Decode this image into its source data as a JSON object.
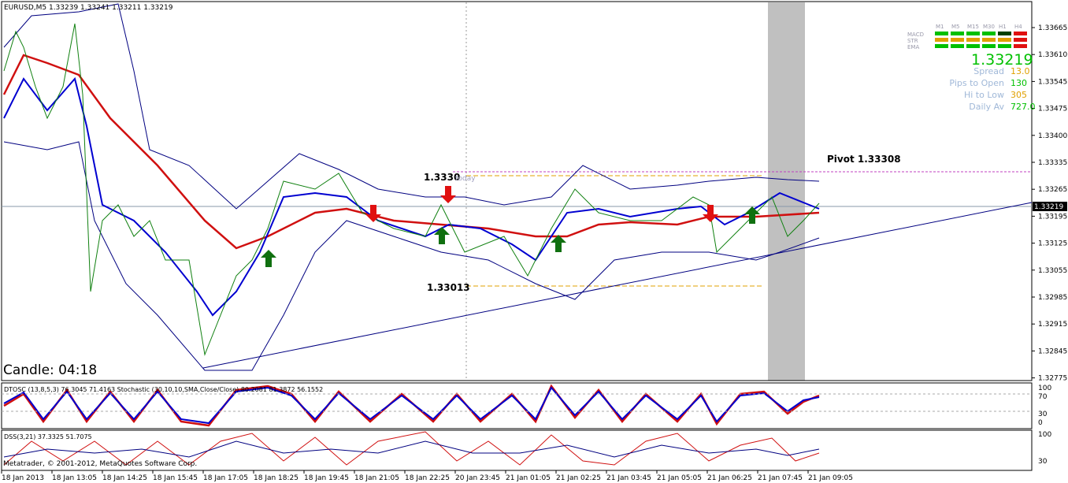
{
  "header": {
    "symbol": "EURUSD,M5  1.33239 1.33241 1.33211 1.33219"
  },
  "price_axis": [
    "1.33665",
    "1.33610",
    "1.33545",
    "1.33475",
    "1.33400",
    "1.33335",
    "1.33265",
    "1.33195",
    "1.33125",
    "1.33055",
    "1.32985",
    "1.32915",
    "1.32845",
    "1.32775"
  ],
  "current_price": "1.33219",
  "time_axis": [
    "18 Jan 2013",
    "18 Jan 13:05",
    "18 Jan 14:25",
    "18 Jan 15:45",
    "18 Jan 17:05",
    "18 Jan 18:25",
    "18 Jan 19:45",
    "18 Jan 21:05",
    "18 Jan 22:25",
    "20 Jan 23:45",
    "21 Jan 01:05",
    "21 Jan 02:25",
    "21 Jan 03:45",
    "21 Jan 05:05",
    "21 Jan 06:25",
    "21 Jan 07:45",
    "21 Jan 09:05"
  ],
  "annotations": {
    "candle": "Candle:  04:18",
    "high": "1.3330",
    "today": "today",
    "low": "1.33013",
    "pivot": "Pivot 1.33308"
  },
  "info_panel": {
    "timeframes": [
      "M1",
      "M5",
      "M15",
      "M30",
      "H1",
      "H4"
    ],
    "rows": [
      "MACD",
      "STR",
      "EMA"
    ],
    "price": "1.33219",
    "stats": [
      {
        "label": "Spread",
        "value": "13.0"
      },
      {
        "label": "Pips to Open",
        "value": "130"
      },
      {
        "label": "Hi to Low",
        "value": "305"
      },
      {
        "label": "Daily Av",
        "value": "727.0"
      }
    ]
  },
  "indicator1": {
    "title": "DTOSC (13,8,5,3) 76.3045 71.4163 Stochastic (30,10,10,SMA,Close/Close) 80.2081 81.3872 56.1552",
    "levels": [
      "100",
      "70",
      "30",
      "0"
    ]
  },
  "indicator2": {
    "title": "DSS(3,21) 37.3325 51.7075",
    "levels": [
      "100",
      "30"
    ]
  },
  "footer": {
    "copyright": "Metatrader, © 2001-2012, MetaQuotes Software Corp."
  }
}
